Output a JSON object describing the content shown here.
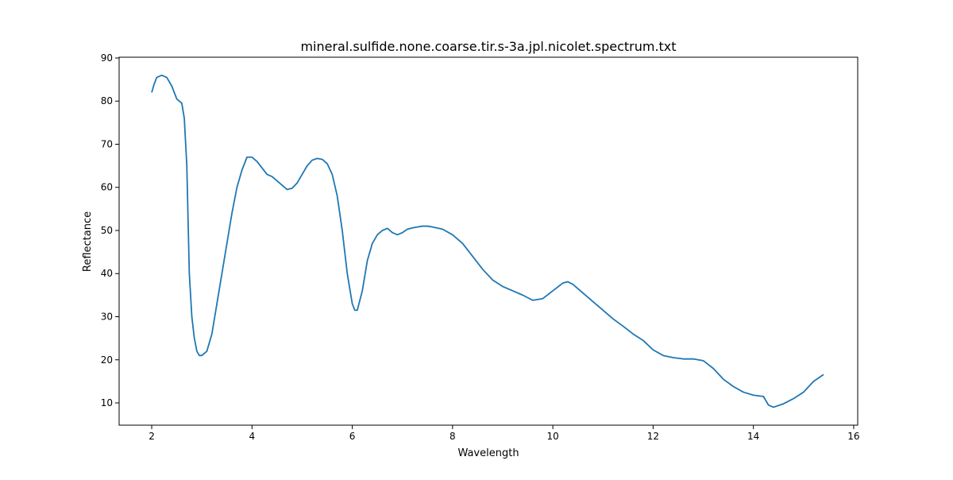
{
  "chart_data": {
    "type": "line",
    "title": "mineral.sulfide.none.coarse.tir.s-3a.jpl.nicolet.spectrum.txt",
    "x_label": "Wavelength",
    "y_label": "Reflectance",
    "x": [
      2.0,
      2.05,
      2.1,
      2.2,
      2.3,
      2.4,
      2.5,
      2.6,
      2.65,
      2.7,
      2.75,
      2.8,
      2.85,
      2.9,
      2.95,
      3.0,
      3.1,
      3.2,
      3.3,
      3.4,
      3.5,
      3.6,
      3.7,
      3.8,
      3.9,
      4.0,
      4.1,
      4.2,
      4.3,
      4.4,
      4.5,
      4.6,
      4.7,
      4.8,
      4.9,
      5.0,
      5.1,
      5.2,
      5.3,
      5.4,
      5.5,
      5.6,
      5.7,
      5.8,
      5.9,
      6.0,
      6.05,
      6.1,
      6.2,
      6.3,
      6.4,
      6.5,
      6.6,
      6.7,
      6.8,
      6.9,
      7.0,
      7.1,
      7.2,
      7.3,
      7.4,
      7.5,
      7.6,
      7.8,
      8.0,
      8.2,
      8.4,
      8.6,
      8.8,
      9.0,
      9.2,
      9.4,
      9.6,
      9.8,
      10.0,
      10.2,
      10.3,
      10.4,
      10.6,
      10.8,
      11.0,
      11.2,
      11.4,
      11.6,
      11.8,
      12.0,
      12.2,
      12.4,
      12.6,
      12.8,
      13.0,
      13.2,
      13.4,
      13.6,
      13.8,
      14.0,
      14.2,
      14.3,
      14.4,
      14.6,
      14.8,
      15.0,
      15.2,
      15.4
    ],
    "series": [
      {
        "name": "spectrum",
        "color": "#1f77b4",
        "values": [
          82,
          84,
          85.5,
          86,
          85.5,
          83.5,
          80.5,
          79.5,
          76,
          65,
          40,
          30,
          25,
          22,
          21,
          21,
          22,
          26,
          33,
          40,
          47,
          54,
          60,
          64,
          67,
          67,
          66,
          64.5,
          63,
          62.5,
          61.5,
          60.5,
          59.5,
          59.8,
          61,
          63,
          65,
          66.3,
          66.7,
          66.5,
          65.5,
          63,
          58,
          50,
          40,
          33,
          31.5,
          31.5,
          36,
          43,
          47,
          49,
          50,
          50.5,
          49.5,
          49,
          49.5,
          50.3,
          50.6,
          50.8,
          51,
          51,
          50.8,
          50.3,
          49,
          47,
          44,
          41,
          38.5,
          37,
          36,
          35,
          33.8,
          34.2,
          36,
          37.8,
          38.1,
          37.5,
          35.5,
          33.5,
          31.5,
          29.5,
          27.8,
          26,
          24.5,
          22.3,
          21,
          20.5,
          20.2,
          20.2,
          19.8,
          18,
          15.5,
          13.8,
          12.5,
          11.8,
          11.5,
          9.5,
          9.0,
          9.8,
          11,
          12.5,
          15,
          16.6
        ]
      }
    ],
    "xlim": [
      1.35,
      16.08
    ],
    "xticks": [
      2,
      4,
      6,
      8,
      10,
      12,
      14,
      16
    ],
    "ylim": [
      4.84,
      90.18
    ],
    "yticks": [
      10,
      20,
      30,
      40,
      50,
      60,
      70,
      80,
      90
    ],
    "grid": false
  }
}
